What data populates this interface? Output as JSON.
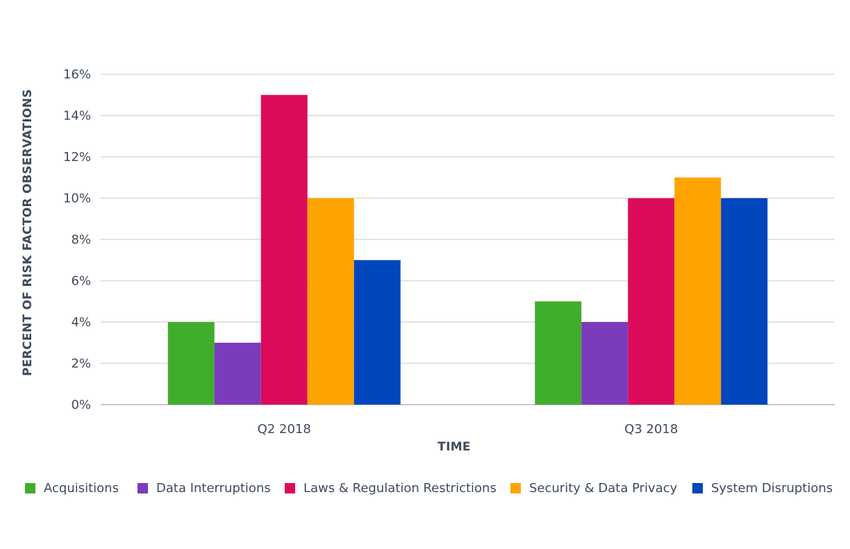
{
  "chart_data": {
    "type": "bar",
    "categories": [
      "Q2 2018",
      "Q3 2018"
    ],
    "series": [
      {
        "name": "Acquisitions",
        "values": [
          4,
          5
        ],
        "color": "#41ad2d"
      },
      {
        "name": "Data Interruptions",
        "values": [
          3,
          4
        ],
        "color": "#7a3bbd"
      },
      {
        "name": "Laws & Regulation Restrictions",
        "values": [
          15,
          10
        ],
        "color": "#dc0b5a"
      },
      {
        "name": "Security & Data Privacy",
        "values": [
          10,
          11
        ],
        "color": "#ffa300"
      },
      {
        "name": "System Disruptions",
        "values": [
          7,
          10
        ],
        "color": "#0046bd"
      }
    ],
    "xlabel": "TIME",
    "ylabel": "PERCENT OF RISK FACTOR OBSERVATIONS",
    "ylim": [
      0,
      16
    ],
    "yticks": [
      "0%",
      "2%",
      "4%",
      "6%",
      "8%",
      "10%",
      "12%",
      "14%",
      "16%"
    ],
    "grid": true,
    "legend_position": "bottom"
  }
}
